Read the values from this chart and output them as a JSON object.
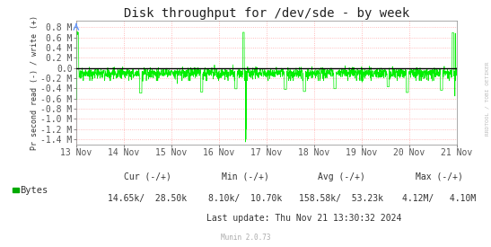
{
  "title": "Disk throughput for /dev/sde - by week",
  "ylabel": "Pr second read (-) / write (+)",
  "background_color": "#ffffff",
  "plot_bg_color": "#ffffff",
  "grid_color": "#ffaaaa",
  "line_color": "#00ee00",
  "zero_line_color": "#000000",
  "border_color": "#aaaaaa",
  "ylim": [
    -1.5,
    0.92
  ],
  "yticks": [
    -1.4,
    -1.2,
    -1.0,
    -0.8,
    -0.6,
    -0.4,
    -0.2,
    0.0,
    0.2,
    0.4,
    0.6,
    0.8
  ],
  "ytick_labels": [
    "-1.4 M",
    "-1.2 M",
    "-1.0 M",
    "-0.8 M",
    "-0.6 M",
    "-0.4 M",
    "-0.2 M",
    "0.0",
    "0.2 M",
    "0.4 M",
    "0.6 M",
    "0.8 M"
  ],
  "xmin": 1731456000,
  "xmax": 1732147200,
  "xtick_positions": [
    1731456000,
    1731542400,
    1731628800,
    1731715200,
    1731801600,
    1731888000,
    1731974400,
    1732060800,
    1732147200
  ],
  "xtick_labels": [
    "13 Nov",
    "14 Nov",
    "15 Nov",
    "16 Nov",
    "17 Nov",
    "18 Nov",
    "19 Nov",
    "20 Nov",
    "21 Nov"
  ],
  "legend_label": "Bytes",
  "legend_color": "#00aa00",
  "cur_label": "Cur (-/+)",
  "cur_val": "14.65k/  28.50k",
  "min_label": "Min (-/+)",
  "min_val": "8.10k/  10.70k",
  "avg_label": "Avg (-/+)",
  "avg_val": "158.58k/  53.23k",
  "max_label": "Max (-/+)",
  "max_val": "4.12M/   4.10M",
  "last_update": "Last update: Thu Nov 21 13:30:32 2024",
  "munin_label": "Munin 2.0.73",
  "rrdtool_label": "RRDTOOL / TOBI OETIKER",
  "title_fontsize": 10,
  "axis_fontsize": 7,
  "legend_fontsize": 7.5,
  "stats_fontsize": 7
}
